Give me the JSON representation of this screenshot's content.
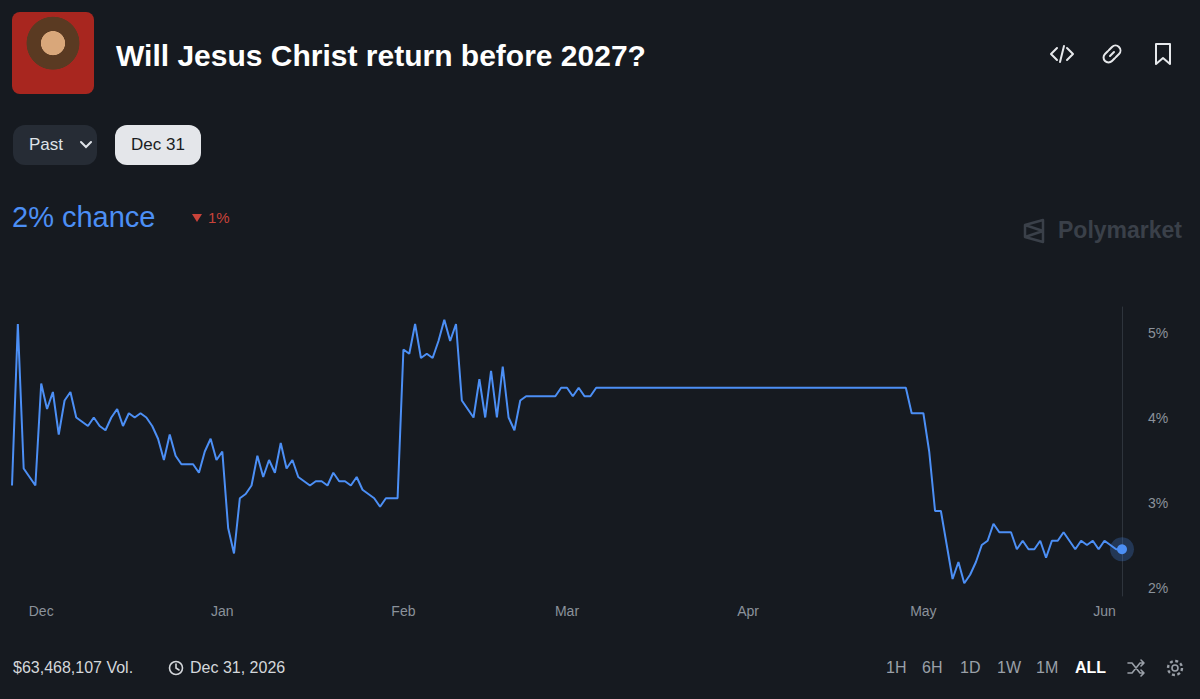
{
  "header": {
    "title": "Will Jesus Christ return before 2027?",
    "buttons": [
      "Past",
      "Dec 31"
    ]
  },
  "probability": {
    "label": "2% chance",
    "change": "1%"
  },
  "watermark": "Polymarket",
  "footer": {
    "volume": "$63,468,107 Vol.",
    "end_date": "Dec 31, 2026",
    "ranges": [
      "1H",
      "6H",
      "1D",
      "1W",
      "1M",
      "ALL"
    ],
    "selected_range": "ALL"
  },
  "chart_data": {
    "type": "line",
    "color": "#4c8ff5",
    "line_style": "solid",
    "grid": false,
    "categories": [
      null,
      null,
      null,
      null,
      null,
      "Dec",
      null,
      null,
      null,
      null,
      null,
      null,
      null,
      null,
      null,
      null,
      null,
      null,
      null,
      null,
      null,
      null,
      null,
      null,
      null,
      null,
      null,
      null,
      null,
      null,
      null,
      null,
      null,
      null,
      null,
      null,
      "Jan",
      null,
      null,
      null,
      null,
      null,
      null,
      null,
      null,
      null,
      null,
      null,
      null,
      null,
      null,
      null,
      null,
      null,
      null,
      null,
      null,
      null,
      null,
      null,
      null,
      null,
      null,
      null,
      null,
      null,
      null,
      "Feb",
      null,
      null,
      null,
      null,
      null,
      null,
      null,
      null,
      null,
      null,
      null,
      null,
      null,
      null,
      null,
      null,
      null,
      null,
      null,
      null,
      null,
      null,
      null,
      null,
      null,
      null,
      null,
      "Mar",
      null,
      null,
      null,
      null,
      null,
      null,
      null,
      null,
      null,
      null,
      null,
      null,
      null,
      null,
      null,
      null,
      null,
      null,
      null,
      null,
      null,
      null,
      null,
      null,
      null,
      null,
      null,
      null,
      null,
      null,
      "Apr",
      null,
      null,
      null,
      null,
      null,
      null,
      null,
      null,
      null,
      null,
      null,
      null,
      null,
      null,
      null,
      null,
      null,
      null,
      null,
      null,
      null,
      null,
      null,
      null,
      null,
      null,
      null,
      null,
      null,
      "May",
      null,
      null,
      null,
      null,
      null,
      null,
      null,
      null,
      null,
      null,
      null,
      null,
      null,
      null,
      null,
      null,
      null,
      null,
      null,
      null,
      null,
      null,
      null,
      null,
      null,
      null,
      null,
      null,
      null,
      null,
      "Jun",
      null,
      null,
      null
    ],
    "values": [
      3.2,
      5.1,
      3.4,
      3.3,
      3.2,
      4.4,
      4.1,
      4.3,
      3.8,
      4.2,
      4.3,
      4.0,
      3.95,
      3.9,
      4.0,
      3.9,
      3.85,
      4.0,
      4.1,
      3.9,
      4.05,
      4.0,
      4.05,
      4.0,
      3.9,
      3.75,
      3.5,
      3.8,
      3.55,
      3.45,
      3.45,
      3.45,
      3.35,
      3.6,
      3.75,
      3.5,
      3.6,
      2.7,
      2.4,
      3.05,
      3.1,
      3.2,
      3.55,
      3.3,
      3.5,
      3.35,
      3.7,
      3.4,
      3.5,
      3.3,
      3.25,
      3.2,
      3.25,
      3.25,
      3.2,
      3.35,
      3.25,
      3.25,
      3.2,
      3.3,
      3.15,
      3.1,
      3.05,
      2.95,
      3.05,
      3.05,
      3.05,
      4.8,
      4.75,
      5.1,
      4.7,
      4.75,
      4.7,
      4.9,
      5.15,
      4.9,
      5.1,
      4.2,
      4.1,
      4.0,
      4.45,
      4.0,
      4.55,
      4.0,
      4.6,
      4.0,
      3.85,
      4.2,
      4.25,
      4.25,
      4.25,
      4.25,
      4.25,
      4.25,
      4.35,
      4.35,
      4.25,
      4.35,
      4.25,
      4.25,
      4.35,
      4.35,
      4.35,
      4.35,
      4.35,
      4.35,
      4.35,
      4.35,
      4.35,
      4.35,
      4.35,
      4.35,
      4.35,
      4.35,
      4.35,
      4.35,
      4.35,
      4.35,
      4.35,
      4.35,
      4.35,
      4.35,
      4.35,
      4.35,
      4.35,
      4.35,
      4.35,
      4.35,
      4.35,
      4.35,
      4.35,
      4.35,
      4.35,
      4.35,
      4.35,
      4.35,
      4.35,
      4.35,
      4.35,
      4.35,
      4.35,
      4.35,
      4.35,
      4.35,
      4.35,
      4.35,
      4.35,
      4.35,
      4.35,
      4.35,
      4.35,
      4.35,
      4.35,
      4.35,
      4.05,
      4.05,
      4.05,
      3.6,
      2.9,
      2.9,
      2.5,
      2.1,
      2.3,
      2.05,
      2.15,
      2.3,
      2.5,
      2.55,
      2.75,
      2.65,
      2.65,
      2.65,
      2.45,
      2.55,
      2.45,
      2.45,
      2.55,
      2.35,
      2.55,
      2.55,
      2.65,
      2.55,
      2.45,
      2.55,
      2.5,
      2.55,
      2.45,
      2.55,
      2.5,
      2.45,
      2.45
    ],
    "ylim": [
      1.9,
      5.3
    ],
    "yticks": [
      {
        "value": 2,
        "label": "2%"
      },
      {
        "value": 3,
        "label": "3%"
      },
      {
        "value": 4,
        "label": "4%"
      },
      {
        "value": 5,
        "label": "5%"
      }
    ]
  }
}
